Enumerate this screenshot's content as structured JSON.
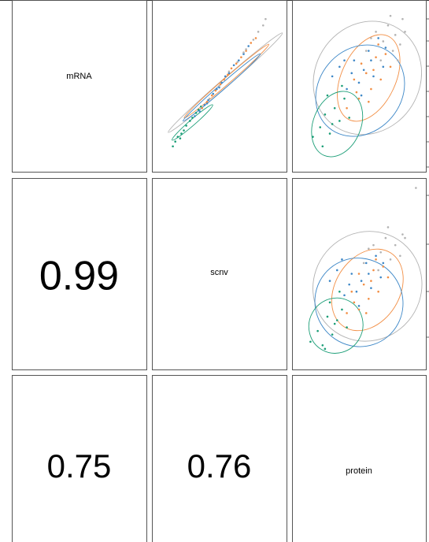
{
  "chart_data": {
    "type": "scatter",
    "title": "",
    "variables": [
      "mRNA",
      "scnv",
      "protein"
    ],
    "correlations": [
      {
        "row": 1,
        "col": 0,
        "label": "0.99"
      },
      {
        "row": 2,
        "col": 0,
        "label": "0.75"
      },
      {
        "row": 2,
        "col": 1,
        "label": "0.76"
      }
    ],
    "colors": {
      "green": "#1b9e77",
      "orange": "#f28e44",
      "blue": "#3d87c7",
      "gray": "#b3b3b3"
    },
    "scatter_panels": [
      {
        "row": 0,
        "col": 1,
        "x_var": "scnv",
        "y_var": "mRNA",
        "xlim": [
          0,
          1
        ],
        "ylim": [
          0,
          1
        ],
        "ellipses": [
          {
            "group": "gray",
            "cx": 0.55,
            "cy": 0.52,
            "rx": 0.62,
            "ry": 0.025,
            "angle": 41
          },
          {
            "group": "orange",
            "cx": 0.56,
            "cy": 0.53,
            "rx": 0.46,
            "ry": 0.02,
            "angle": 41
          },
          {
            "group": "blue",
            "cx": 0.52,
            "cy": 0.49,
            "rx": 0.42,
            "ry": 0.018,
            "angle": 41
          },
          {
            "group": "green",
            "cx": 0.28,
            "cy": 0.27,
            "rx": 0.22,
            "ry": 0.018,
            "angle": 41
          }
        ],
        "points": [
          [
            0.12,
            0.12,
            "green"
          ],
          [
            0.14,
            0.15,
            "green"
          ],
          [
            0.16,
            0.18,
            "green"
          ],
          [
            0.19,
            0.2,
            "green"
          ],
          [
            0.21,
            0.22,
            "green"
          ],
          [
            0.23,
            0.25,
            "green"
          ],
          [
            0.26,
            0.28,
            "green"
          ],
          [
            0.28,
            0.3,
            "green"
          ],
          [
            0.31,
            0.33,
            "green"
          ],
          [
            0.33,
            0.35,
            "green"
          ],
          [
            0.35,
            0.37,
            "green"
          ],
          [
            0.18,
            0.17,
            "green"
          ],
          [
            0.3,
            0.31,
            "blue"
          ],
          [
            0.34,
            0.34,
            "blue"
          ],
          [
            0.38,
            0.38,
            "blue"
          ],
          [
            0.41,
            0.41,
            "blue"
          ],
          [
            0.45,
            0.45,
            "blue"
          ],
          [
            0.48,
            0.48,
            "blue"
          ],
          [
            0.52,
            0.52,
            "blue"
          ],
          [
            0.55,
            0.56,
            "blue"
          ],
          [
            0.58,
            0.58,
            "blue"
          ],
          [
            0.62,
            0.63,
            "blue"
          ],
          [
            0.66,
            0.66,
            "blue"
          ],
          [
            0.7,
            0.7,
            "blue"
          ],
          [
            0.74,
            0.75,
            "blue"
          ],
          [
            0.4,
            0.39,
            "blue"
          ],
          [
            0.5,
            0.49,
            "blue"
          ],
          [
            0.36,
            0.36,
            "orange"
          ],
          [
            0.4,
            0.4,
            "orange"
          ],
          [
            0.44,
            0.44,
            "orange"
          ],
          [
            0.47,
            0.47,
            "orange"
          ],
          [
            0.51,
            0.51,
            "orange"
          ],
          [
            0.54,
            0.54,
            "orange"
          ],
          [
            0.57,
            0.57,
            "orange"
          ],
          [
            0.6,
            0.61,
            "orange"
          ],
          [
            0.64,
            0.64,
            "orange"
          ],
          [
            0.68,
            0.68,
            "orange"
          ],
          [
            0.72,
            0.72,
            "orange"
          ],
          [
            0.76,
            0.77,
            "orange"
          ],
          [
            0.8,
            0.8,
            "orange"
          ],
          [
            0.42,
            0.42,
            "gray"
          ],
          [
            0.5,
            0.5,
            "gray"
          ],
          [
            0.58,
            0.59,
            "gray"
          ],
          [
            0.65,
            0.65,
            "gray"
          ],
          [
            0.72,
            0.73,
            "gray"
          ],
          [
            0.78,
            0.79,
            "gray"
          ],
          [
            0.82,
            0.84,
            "gray"
          ],
          [
            0.86,
            0.88,
            "gray"
          ],
          [
            0.88,
            0.92,
            "gray"
          ],
          [
            0.7,
            0.71,
            "gray"
          ]
        ]
      },
      {
        "row": 0,
        "col": 2,
        "x_var": "protein",
        "y_var": "mRNA",
        "xlim": [
          0,
          1
        ],
        "ylim": [
          0,
          1
        ],
        "ellipses": [
          {
            "group": "gray",
            "cx": 0.57,
            "cy": 0.55,
            "rx": 0.48,
            "ry": 0.33,
            "angle": 58
          },
          {
            "group": "orange",
            "cx": 0.58,
            "cy": 0.55,
            "rx": 0.38,
            "ry": 0.17,
            "angle": 65
          },
          {
            "group": "blue",
            "cx": 0.51,
            "cy": 0.47,
            "rx": 0.4,
            "ry": 0.26,
            "angle": 50
          },
          {
            "group": "green",
            "cx": 0.32,
            "cy": 0.26,
            "rx": 0.28,
            "ry": 0.15,
            "angle": 68
          }
        ],
        "points": [
          [
            0.12,
            0.18,
            "green"
          ],
          [
            0.18,
            0.24,
            "green"
          ],
          [
            0.22,
            0.32,
            "green"
          ],
          [
            0.26,
            0.2,
            "green"
          ],
          [
            0.3,
            0.36,
            "green"
          ],
          [
            0.34,
            0.28,
            "green"
          ],
          [
            0.38,
            0.42,
            "green"
          ],
          [
            0.24,
            0.44,
            "green"
          ],
          [
            0.42,
            0.3,
            "green"
          ],
          [
            0.2,
            0.12,
            "green"
          ],
          [
            0.36,
            0.5,
            "green"
          ],
          [
            0.28,
            0.26,
            "green"
          ],
          [
            0.28,
            0.56,
            "blue"
          ],
          [
            0.34,
            0.62,
            "blue"
          ],
          [
            0.4,
            0.48,
            "blue"
          ],
          [
            0.46,
            0.66,
            "blue"
          ],
          [
            0.5,
            0.52,
            "blue"
          ],
          [
            0.54,
            0.6,
            "blue"
          ],
          [
            0.58,
            0.72,
            "blue"
          ],
          [
            0.62,
            0.56,
            "blue"
          ],
          [
            0.66,
            0.8,
            "blue"
          ],
          [
            0.7,
            0.62,
            "blue"
          ],
          [
            0.44,
            0.58,
            "blue"
          ],
          [
            0.52,
            0.44,
            "blue"
          ],
          [
            0.6,
            0.66,
            "blue"
          ],
          [
            0.72,
            0.74,
            "blue"
          ],
          [
            0.38,
            0.66,
            "blue"
          ],
          [
            0.4,
            0.36,
            "orange"
          ],
          [
            0.46,
            0.54,
            "orange"
          ],
          [
            0.5,
            0.42,
            "orange"
          ],
          [
            0.56,
            0.58,
            "orange"
          ],
          [
            0.6,
            0.48,
            "orange"
          ],
          [
            0.64,
            0.68,
            "orange"
          ],
          [
            0.68,
            0.54,
            "orange"
          ],
          [
            0.72,
            0.7,
            "orange"
          ],
          [
            0.76,
            0.62,
            "orange"
          ],
          [
            0.52,
            0.64,
            "orange"
          ],
          [
            0.58,
            0.4,
            "orange"
          ],
          [
            0.66,
            0.76,
            "orange"
          ],
          [
            0.48,
            0.46,
            "orange"
          ],
          [
            0.62,
            0.6,
            "orange"
          ],
          [
            0.56,
            0.72,
            "gray"
          ],
          [
            0.64,
            0.84,
            "gray"
          ],
          [
            0.7,
            0.78,
            "gray"
          ],
          [
            0.74,
            0.88,
            "gray"
          ],
          [
            0.78,
            0.72,
            "gray"
          ],
          [
            0.8,
            0.82,
            "gray"
          ],
          [
            0.84,
            0.76,
            "gray"
          ],
          [
            0.86,
            0.92,
            "gray"
          ],
          [
            0.68,
            0.66,
            "gray"
          ],
          [
            0.6,
            0.8,
            "gray"
          ],
          [
            0.88,
            0.84,
            "gray"
          ],
          [
            0.76,
            0.94,
            "gray"
          ],
          [
            0.82,
            0.66,
            "gray"
          ]
        ]
      },
      {
        "row": 1,
        "col": 2,
        "x_var": "protein",
        "y_var": "scnv",
        "xlim": [
          0,
          1
        ],
        "ylim": [
          0,
          1
        ],
        "ellipses": [
          {
            "group": "gray",
            "cx": 0.57,
            "cy": 0.43,
            "rx": 0.46,
            "ry": 0.3,
            "angle": 50
          },
          {
            "group": "orange",
            "cx": 0.57,
            "cy": 0.41,
            "rx": 0.36,
            "ry": 0.18,
            "angle": 58
          },
          {
            "group": "blue",
            "cx": 0.5,
            "cy": 0.34,
            "rx": 0.36,
            "ry": 0.25,
            "angle": 40
          },
          {
            "group": "green",
            "cx": 0.31,
            "cy": 0.21,
            "rx": 0.23,
            "ry": 0.15,
            "angle": 60
          }
        ],
        "points": [
          [
            0.1,
            0.12,
            "green"
          ],
          [
            0.16,
            0.18,
            "green"
          ],
          [
            0.2,
            0.1,
            "green"
          ],
          [
            0.24,
            0.26,
            "green"
          ],
          [
            0.28,
            0.16,
            "green"
          ],
          [
            0.32,
            0.24,
            "green"
          ],
          [
            0.36,
            0.3,
            "green"
          ],
          [
            0.26,
            0.34,
            "green"
          ],
          [
            0.4,
            0.2,
            "green"
          ],
          [
            0.22,
            0.08,
            "green"
          ],
          [
            0.34,
            0.4,
            "green"
          ],
          [
            0.3,
            0.22,
            "green"
          ],
          [
            0.26,
            0.46,
            "blue"
          ],
          [
            0.32,
            0.52,
            "blue"
          ],
          [
            0.38,
            0.38,
            "blue"
          ],
          [
            0.44,
            0.5,
            "blue"
          ],
          [
            0.48,
            0.4,
            "blue"
          ],
          [
            0.52,
            0.46,
            "blue"
          ],
          [
            0.56,
            0.56,
            "blue"
          ],
          [
            0.6,
            0.42,
            "blue"
          ],
          [
            0.64,
            0.6,
            "blue"
          ],
          [
            0.68,
            0.48,
            "blue"
          ],
          [
            0.42,
            0.44,
            "blue"
          ],
          [
            0.5,
            0.32,
            "blue"
          ],
          [
            0.58,
            0.5,
            "blue"
          ],
          [
            0.7,
            0.56,
            "blue"
          ],
          [
            0.36,
            0.58,
            "blue"
          ],
          [
            0.4,
            0.28,
            "orange"
          ],
          [
            0.44,
            0.4,
            "orange"
          ],
          [
            0.5,
            0.3,
            "orange"
          ],
          [
            0.54,
            0.44,
            "orange"
          ],
          [
            0.58,
            0.36,
            "orange"
          ],
          [
            0.62,
            0.52,
            "orange"
          ],
          [
            0.66,
            0.4,
            "orange"
          ],
          [
            0.7,
            0.54,
            "orange"
          ],
          [
            0.74,
            0.48,
            "orange"
          ],
          [
            0.5,
            0.5,
            "orange"
          ],
          [
            0.56,
            0.28,
            "orange"
          ],
          [
            0.64,
            0.58,
            "orange"
          ],
          [
            0.46,
            0.34,
            "orange"
          ],
          [
            0.6,
            0.46,
            "orange"
          ],
          [
            0.54,
            0.56,
            "gray"
          ],
          [
            0.62,
            0.66,
            "gray"
          ],
          [
            0.68,
            0.62,
            "gray"
          ],
          [
            0.72,
            0.7,
            "gray"
          ],
          [
            0.76,
            0.58,
            "gray"
          ],
          [
            0.8,
            0.66,
            "gray"
          ],
          [
            0.84,
            0.6,
            "gray"
          ],
          [
            0.86,
            0.72,
            "gray"
          ],
          [
            0.66,
            0.52,
            "gray"
          ],
          [
            0.58,
            0.64,
            "gray"
          ],
          [
            0.88,
            0.7,
            "gray"
          ],
          [
            0.74,
            0.76,
            "gray"
          ],
          [
            0.97,
            0.98,
            "gray"
          ]
        ]
      }
    ]
  }
}
